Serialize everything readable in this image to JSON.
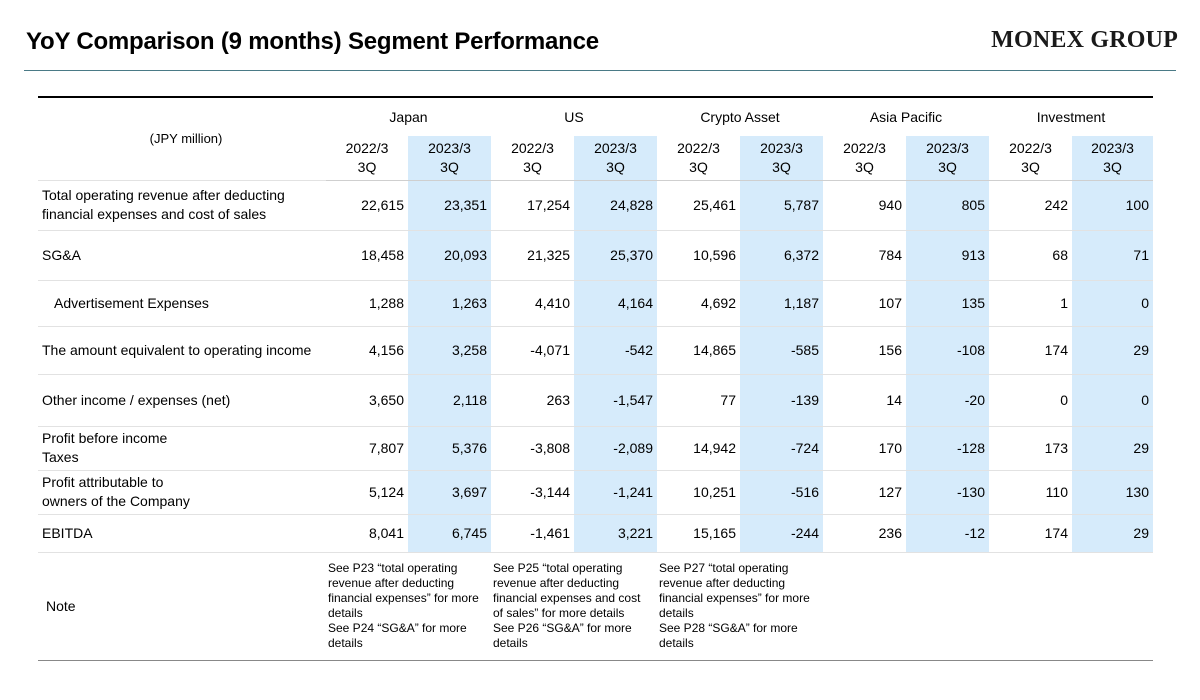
{
  "page": {
    "title": "YoY Comparison (9 months) Segment Performance",
    "logo": "MONEX GROUP"
  },
  "table": {
    "unit": "(JPY million)",
    "segments": [
      "Japan",
      "US",
      "Crypto Asset",
      "Asia Pacific",
      "Investment"
    ],
    "periods": [
      "2022/3\n3Q",
      "2023/3\n3Q",
      "2022/3\n3Q",
      "2023/3\n3Q",
      "2022/3\n3Q",
      "2023/3\n3Q",
      "2022/3\n3Q",
      "2023/3\n3Q",
      "2022/3\n3Q",
      "2023/3\n3Q"
    ],
    "highlight_color": "#d6ebfb",
    "rows": [
      {
        "label": "Total operating revenue after deducting financial expenses and cost of sales",
        "indent": false,
        "values": [
          "22,615",
          "23,351",
          "17,254",
          "24,828",
          "25,461",
          "5,787",
          "940",
          "805",
          "242",
          "100"
        ]
      },
      {
        "label": "SG&A",
        "indent": false,
        "values": [
          "18,458",
          "20,093",
          "21,325",
          "25,370",
          "10,596",
          "6,372",
          "784",
          "913",
          "68",
          "71"
        ]
      },
      {
        "label": "Advertisement Expenses",
        "indent": true,
        "values": [
          "1,288",
          "1,263",
          "4,410",
          "4,164",
          "4,692",
          "1,187",
          "107",
          "135",
          "1",
          "0"
        ]
      },
      {
        "label": "The amount equivalent to operating income",
        "indent": false,
        "values": [
          "4,156",
          "3,258",
          "-4,071",
          "-542",
          "14,865",
          "-585",
          "156",
          "-108",
          "174",
          "29"
        ]
      },
      {
        "label": "Other income / expenses (net)",
        "indent": false,
        "values": [
          "3,650",
          "2,118",
          "263",
          "-1,547",
          "77",
          "-139",
          "14",
          "-20",
          "0",
          "0"
        ]
      },
      {
        "label": "Profit before income\nTaxes",
        "indent": false,
        "values": [
          "7,807",
          "5,376",
          "-3,808",
          "-2,089",
          "14,942",
          "-724",
          "170",
          "-128",
          "173",
          "29"
        ]
      },
      {
        "label": "Profit attributable to\nowners of the Company",
        "indent": false,
        "values": [
          "5,124",
          "3,697",
          "-3,144",
          "-1,241",
          "10,251",
          "-516",
          "127",
          "-130",
          "110",
          "130"
        ]
      },
      {
        "label": "EBITDA",
        "indent": false,
        "values": [
          "8,041",
          "6,745",
          "-1,461",
          "3,221",
          "15,165",
          "-244",
          "236",
          "-12",
          "174",
          "29"
        ]
      }
    ],
    "note": {
      "label": "Note",
      "japan": "See P23 “total operating revenue after deducting financial expenses” for more details\nSee P24 “SG&A” for more details",
      "us": "See P25 “total operating revenue after deducting financial expenses and cost of sales” for more details\nSee P26 “SG&A” for more details",
      "crypto": "See P27 “total operating revenue after deducting financial expenses” for more details\nSee P28 “SG&A” for more details"
    }
  }
}
